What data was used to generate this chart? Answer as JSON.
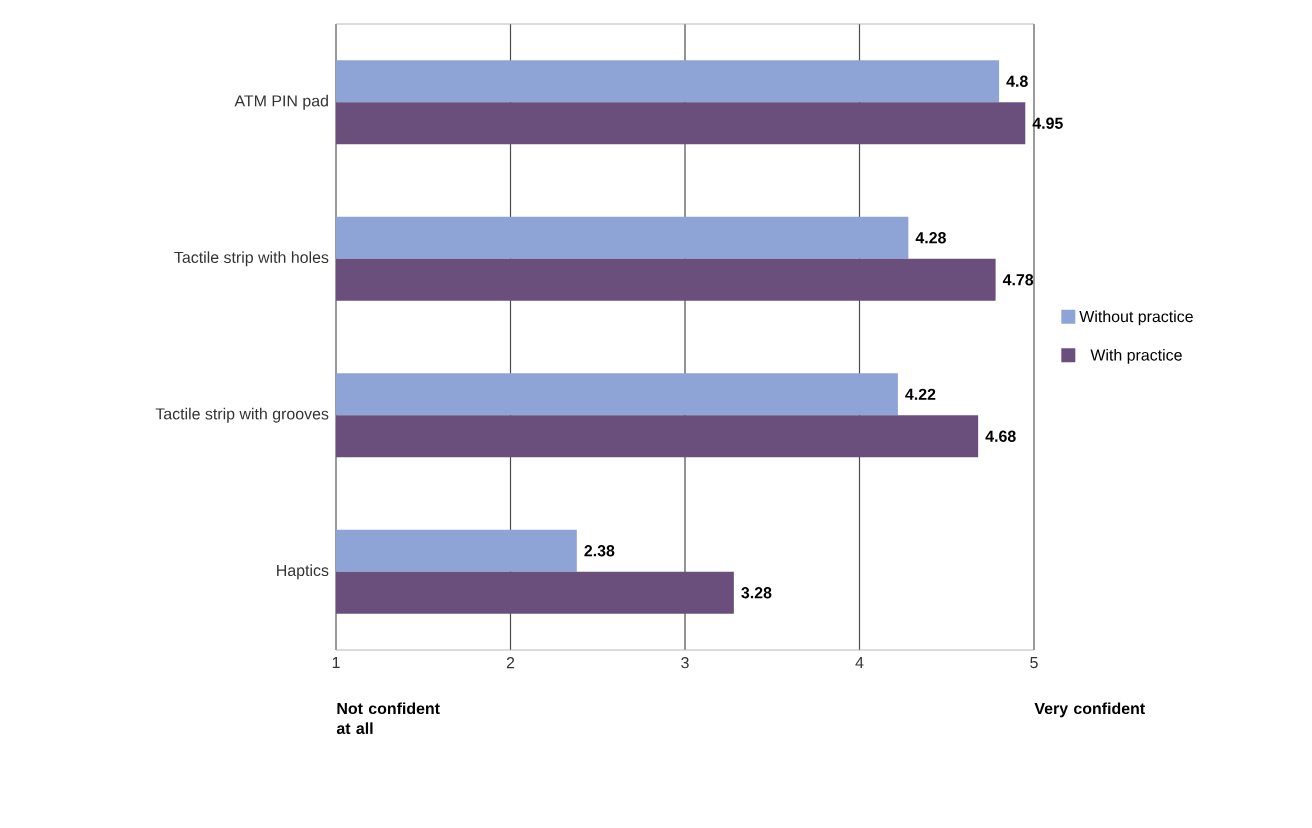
{
  "chart_data": {
    "type": "bar",
    "orientation": "horizontal",
    "categories": [
      "ATM PIN pad",
      "Tactile strip with holes",
      "Tactile strip with grooves",
      "Haptics"
    ],
    "series": [
      {
        "name": "Without practice",
        "color": "#8ea3d6",
        "values": [
          4.8,
          4.28,
          4.22,
          2.38
        ]
      },
      {
        "name": "With practice",
        "color": "#6a4f7c",
        "values": [
          4.95,
          4.78,
          4.68,
          3.28
        ]
      }
    ],
    "xlim": [
      1,
      5
    ],
    "xticks": [
      1,
      2,
      3,
      4,
      5
    ],
    "grid": "x",
    "legend": "right",
    "data_labels": true,
    "annotations": [
      "Not confident at all",
      "Very confident"
    ]
  }
}
